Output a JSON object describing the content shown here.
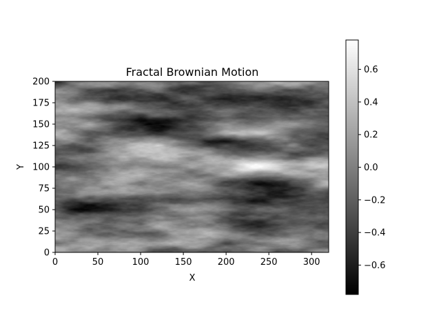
{
  "chart_data": {
    "type": "heatmap",
    "title": "Fractal Brownian Motion",
    "xlabel": "X",
    "ylabel": "Y",
    "xlim": [
      0,
      320
    ],
    "ylim": [
      0,
      200
    ],
    "x_ticks": [
      0,
      50,
      100,
      150,
      200,
      250,
      300
    ],
    "y_ticks": [
      0,
      25,
      50,
      75,
      100,
      125,
      150,
      175,
      200
    ],
    "colormap": "gray",
    "value_range": [
      -0.78,
      0.78
    ],
    "colorbar_ticks": [
      0.6,
      0.4,
      0.2,
      0.0,
      -0.2,
      -0.4,
      -0.6
    ],
    "colorbar_tick_labels": [
      "0.6",
      "0.4",
      "0.2",
      "0.0",
      "−0.2",
      "−0.4",
      "−0.6"
    ],
    "grid": false,
    "features": [
      {
        "x": 115,
        "y": 150,
        "value": -0.75
      },
      {
        "x": 30,
        "y": 52,
        "value": -0.7
      },
      {
        "x": 290,
        "y": 178,
        "value": -0.55
      },
      {
        "x": 285,
        "y": 78,
        "value": -0.5
      },
      {
        "x": 85,
        "y": 102,
        "value": -0.5
      },
      {
        "x": 190,
        "y": 125,
        "value": -0.45
      },
      {
        "x": 175,
        "y": 198,
        "value": -0.55
      },
      {
        "x": 5,
        "y": 100,
        "value": -0.45
      },
      {
        "x": 60,
        "y": 187,
        "value": -0.35
      },
      {
        "x": 240,
        "y": 100,
        "value": 0.6
      },
      {
        "x": 170,
        "y": 55,
        "value": 0.5
      },
      {
        "x": 120,
        "y": 120,
        "value": 0.5
      },
      {
        "x": 80,
        "y": 12,
        "value": 0.45
      },
      {
        "x": 40,
        "y": 165,
        "value": 0.35
      },
      {
        "x": 300,
        "y": 150,
        "value": 0.35
      },
      {
        "x": 220,
        "y": 35,
        "value": -0.3
      },
      {
        "x": 30,
        "y": 80,
        "value": 0.25
      },
      {
        "x": 260,
        "y": 12,
        "value": 0.3
      }
    ]
  }
}
